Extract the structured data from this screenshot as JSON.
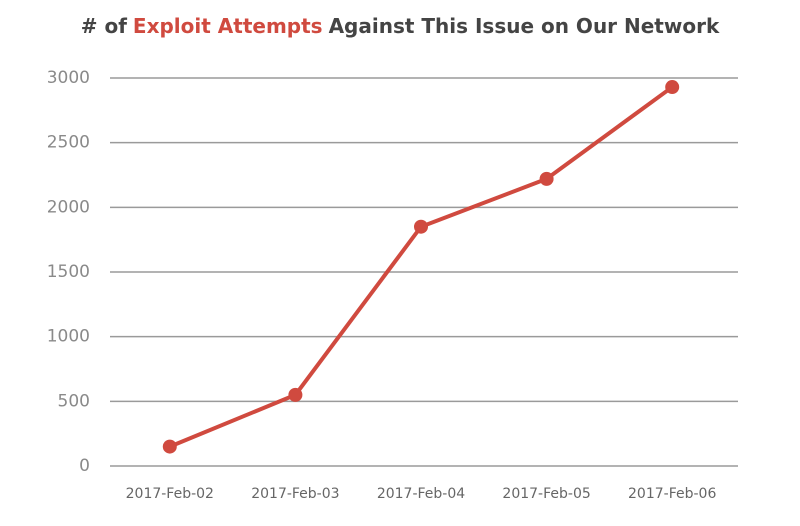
{
  "chart_data": {
    "type": "line",
    "title_parts": [
      "# of",
      "Exploit Attempts",
      "Against This Issue on Our Network"
    ],
    "title_colors": [
      "#444444",
      "#d04a3f",
      "#444444"
    ],
    "categories": [
      "2017-Feb-02",
      "2017-Feb-03",
      "2017-Feb-04",
      "2017-Feb-05",
      "2017-Feb-06"
    ],
    "values": [
      150,
      550,
      1850,
      2220,
      2930
    ],
    "color": "#d04a3f",
    "ylim": [
      0,
      3000
    ],
    "yticks": [
      0,
      500,
      1000,
      1500,
      2000,
      2500,
      3000
    ],
    "grid": true
  }
}
